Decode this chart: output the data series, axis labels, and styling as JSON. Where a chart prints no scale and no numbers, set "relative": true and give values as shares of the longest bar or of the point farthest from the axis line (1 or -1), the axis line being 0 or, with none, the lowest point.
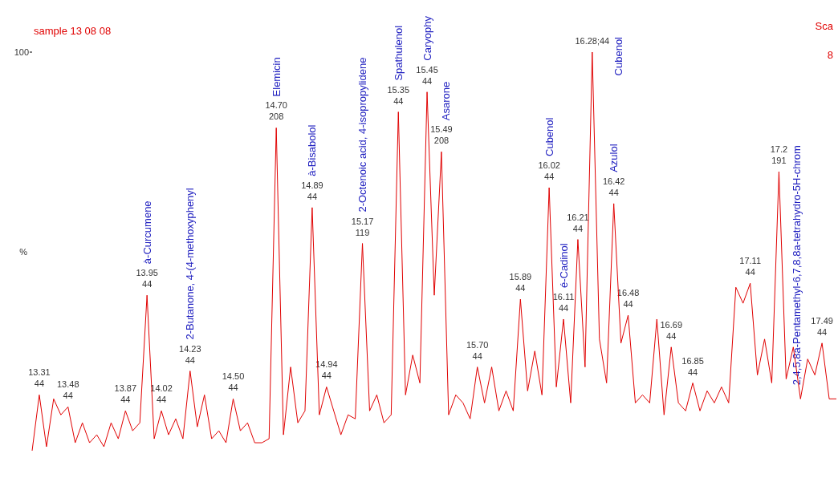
{
  "chart_data": {
    "type": "line",
    "title": "sample 13 08 08",
    "ylabel": "%",
    "relative": true,
    "tick_labels": false,
    "line_style": "solid",
    "categories": [
      null,
      null,
      null,
      null,
      null,
      null,
      null,
      null,
      null,
      null,
      null,
      null,
      null,
      null,
      null,
      null,
      null,
      null,
      null,
      null,
      null,
      null,
      null,
      null,
      null,
      null,
      null,
      null,
      null,
      null,
      null,
      null,
      null,
      null,
      null,
      null,
      null,
      null,
      null,
      null,
      null,
      null,
      null,
      null,
      null,
      null,
      null,
      null,
      null,
      null,
      null,
      null,
      null,
      null,
      null,
      null,
      null,
      null,
      null,
      null,
      null,
      null,
      null,
      null,
      null,
      null,
      null,
      null,
      null,
      null,
      null,
      null,
      null,
      null,
      null,
      null,
      null,
      null,
      null,
      null,
      null,
      null,
      null,
      null,
      null,
      null,
      null,
      null,
      null,
      null,
      null,
      null,
      null,
      null,
      null,
      null,
      null,
      null,
      null,
      null,
      null,
      null,
      null,
      null,
      null,
      null,
      null,
      null,
      null,
      null,
      null,
      null,
      null
    ],
    "color": "#e00000",
    "values": [
      0,
      0.14,
      0.01,
      0.13,
      0.09,
      0.11,
      0.02,
      0.07,
      0.02,
      0.04,
      0.01,
      0.07,
      0.03,
      0.1,
      0.05,
      0.07,
      0.39,
      0.03,
      0.1,
      0.04,
      0.08,
      0.03,
      0.2,
      0.06,
      0.14,
      0.03,
      0.05,
      0.02,
      0.13,
      0.05,
      0.07,
      0.02,
      0.02,
      0.03,
      0.81,
      0.04,
      0.21,
      0.07,
      0.1,
      0.61,
      0.09,
      0.16,
      0.1,
      0.04,
      0.09,
      0.08,
      0.52,
      0.1,
      0.14,
      0.07,
      0.09,
      0.85,
      0.14,
      0.24,
      0.17,
      0.9,
      0.39,
      0.75,
      0.09,
      0.14,
      0.12,
      0.08,
      0.21,
      0.12,
      0.21,
      0.1,
      0.15,
      0.1,
      0.38,
      0.15,
      0.25,
      0.14,
      0.66,
      0.16,
      0.33,
      0.12,
      0.53,
      0.21,
      1,
      0.28,
      0.17,
      0.62,
      0.27,
      0.34,
      0.12,
      0.14,
      0.12,
      0.33,
      0.09,
      0.26,
      0.12,
      0.1,
      0.17,
      0.1,
      0.15,
      0.12,
      0.16,
      0.12,
      0.41,
      0.37,
      0.42,
      0.19,
      0.28,
      0.17,
      0.7,
      0.18,
      0.26,
      0.13,
      0.23,
      0.19,
      0.27,
      0.13,
      0.13
    ],
    "annotations": [
      "100",
      "Sca",
      "8",
      {
        "text": "13.31\n44",
        "y": 0.14
      },
      {
        "text": "13.48\n44",
        "y": 0.11
      },
      {
        "text": "13.87\n44",
        "y": 0.1
      },
      {
        "text": "13.95\n44",
        "y": 0.39
      },
      "à-Curcumene",
      {
        "text": "14.02\n44",
        "y": 0.1
      },
      {
        "text": "14.23\n44",
        "y": 0.2
      },
      "2-Butanone, 4-(4-methoxyphenyl",
      {
        "text": "14.50\n44",
        "y": 0.13
      },
      {
        "text": "14.70\n208",
        "y": 0.81
      },
      "Elemicin",
      {
        "text": "14.89\n44",
        "y": 0.61
      },
      "à-Bisabolol",
      {
        "text": "14.94\n44",
        "y": 0.16
      },
      {
        "text": "15.17\n119",
        "y": 0.52
      },
      "2-Octenoic acid, 4-isopropylidene",
      {
        "text": "15.35\n44",
        "y": 0.85
      },
      "Spathulenol",
      {
        "text": "15.45\n44",
        "y": 0.9
      },
      "Caryophy",
      {
        "text": "15.49\n208",
        "y": 0.75
      },
      "Asarone",
      {
        "text": "15.70\n44",
        "y": 0.21
      },
      {
        "text": "15.89\n44",
        "y": 0.38
      },
      {
        "text": "16.02\n44",
        "y": 0.66
      },
      "Cubenol",
      {
        "text": "16.11\n44",
        "y": 0.33
      },
      "é-Cadinol",
      {
        "text": "16.21\n44",
        "y": 0.53
      },
      {
        "text": "16.28;44",
        "y": 1
      },
      "Cubenol",
      {
        "text": "16.42\n44",
        "y": 0.62
      },
      "Azulol",
      {
        "text": "16.48\n44",
        "y": 0.34
      },
      {
        "text": "16.69\n44",
        "y": 0.26
      },
      {
        "text": "16.85\n44",
        "y": 0.17
      },
      {
        "text": "17.11\n44",
        "y": 0.42
      },
      {
        "text": "17.2\n191",
        "y": 0.7
      },
      "2,4,5,8a-Pentamethyl-6,7,8,8a-tetrahydro-5H-chrom",
      {
        "text": "17.49\n44",
        "y": 0.27
      }
    ]
  }
}
